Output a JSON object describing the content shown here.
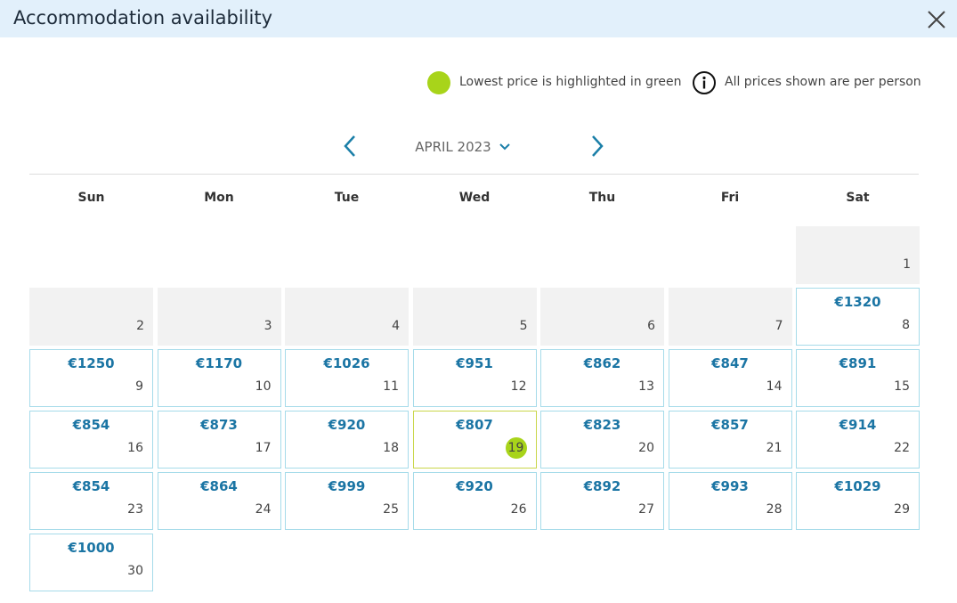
{
  "header": {
    "title": "Accommodation availability"
  },
  "legend": {
    "lowest": "Lowest price is highlighted in green",
    "per_person": "All prices shown are per person"
  },
  "calendar": {
    "month": "APRIL 2023",
    "weekdays": [
      "Sun",
      "Mon",
      "Tue",
      "Wed",
      "Thu",
      "Fri",
      "Sat"
    ],
    "weeks": [
      [
        null,
        null,
        null,
        null,
        null,
        null,
        {
          "date": 1
        }
      ],
      [
        {
          "date": 2
        },
        {
          "date": 3
        },
        {
          "date": 4
        },
        {
          "date": 5
        },
        {
          "date": 6
        },
        {
          "date": 7
        },
        {
          "date": 8,
          "price": "€1320"
        }
      ],
      [
        {
          "date": 9,
          "price": "€1250"
        },
        {
          "date": 10,
          "price": "€1170"
        },
        {
          "date": 11,
          "price": "€1026"
        },
        {
          "date": 12,
          "price": "€951"
        },
        {
          "date": 13,
          "price": "€862"
        },
        {
          "date": 14,
          "price": "€847"
        },
        {
          "date": 15,
          "price": "€891"
        }
      ],
      [
        {
          "date": 16,
          "price": "€854"
        },
        {
          "date": 17,
          "price": "€873"
        },
        {
          "date": 18,
          "price": "€920"
        },
        {
          "date": 19,
          "price": "€807",
          "lowest": true
        },
        {
          "date": 20,
          "price": "€823"
        },
        {
          "date": 21,
          "price": "€857"
        },
        {
          "date": 22,
          "price": "€914"
        }
      ],
      [
        {
          "date": 23,
          "price": "€854"
        },
        {
          "date": 24,
          "price": "€864"
        },
        {
          "date": 25,
          "price": "€999"
        },
        {
          "date": 26,
          "price": "€920"
        },
        {
          "date": 27,
          "price": "€892"
        },
        {
          "date": 28,
          "price": "€993"
        },
        {
          "date": 29,
          "price": "€1029"
        }
      ],
      [
        {
          "date": 30,
          "price": "€1000"
        }
      ]
    ]
  }
}
